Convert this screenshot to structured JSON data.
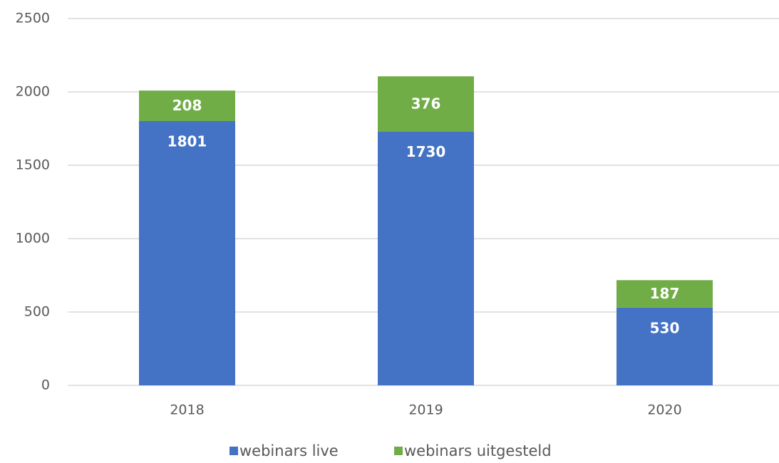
{
  "chart_data": {
    "type": "bar",
    "stacked": true,
    "categories": [
      "2018",
      "2019",
      "2020"
    ],
    "series": [
      {
        "name": "webinars live",
        "color": "#4472c4",
        "values": [
          1801,
          1730,
          530
        ]
      },
      {
        "name": "webinars uitgesteld",
        "color": "#70ad47",
        "values": [
          208,
          376,
          187
        ]
      }
    ],
    "ylim": [
      0,
      2500
    ],
    "yticks": [
      0,
      500,
      1000,
      1500,
      2000,
      2500
    ],
    "grid": true,
    "legend": "bottom"
  }
}
